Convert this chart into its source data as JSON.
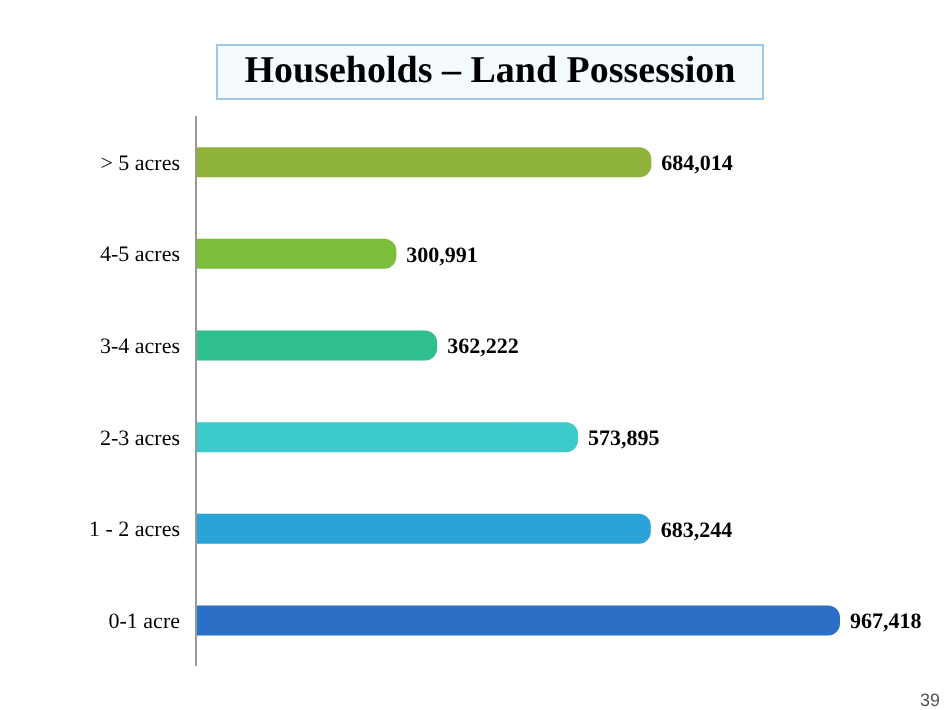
{
  "chart_data": {
    "type": "bar",
    "orientation": "horizontal",
    "title": "Households – Land Possession",
    "categories": [
      "> 5 acres",
      "4-5 acres",
      "3-4 acres",
      "2-3 acres",
      "1 - 2 acres",
      "0-1 acre"
    ],
    "values": [
      684014,
      300991,
      362222,
      573895,
      683244,
      967418
    ],
    "colors": [
      "#8fb33a",
      "#7cbd3c",
      "#2fbf8c",
      "#3ccaca",
      "#2aa3d8",
      "#2b6fc6"
    ],
    "value_labels": [
      "684,014",
      "300,991",
      "362,222",
      "573,895",
      "683,244",
      "967,418"
    ],
    "annotations": [
      "39"
    ]
  }
}
